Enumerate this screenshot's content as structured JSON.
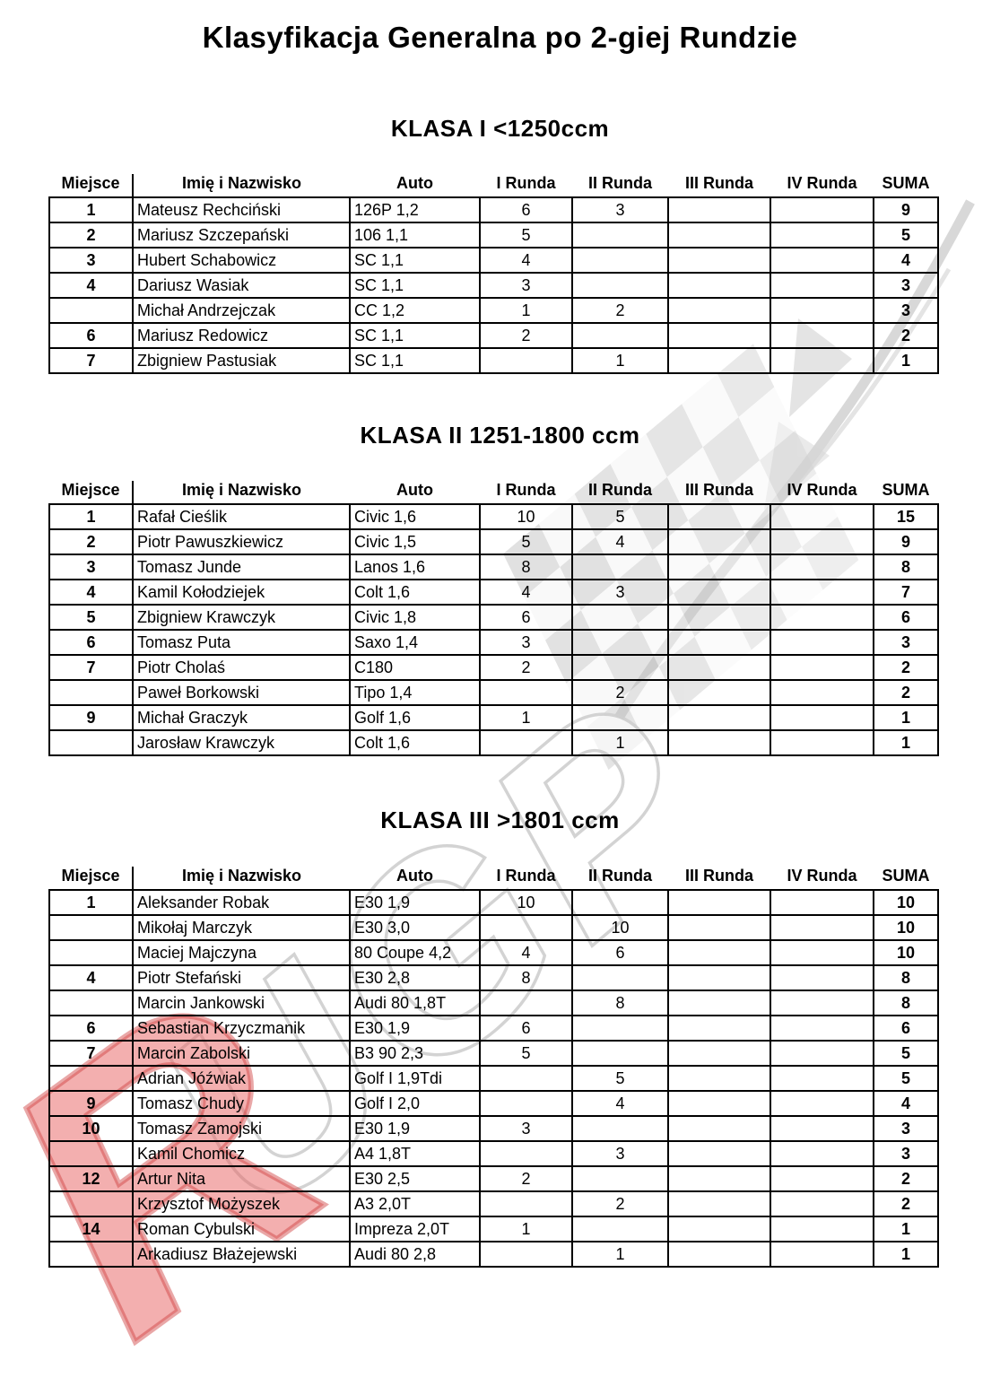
{
  "page": {
    "title": "Klasyfikacja Generalna po 2-giej Rundzie"
  },
  "watermark": {
    "icon": "checkered-flag-watermark",
    "letters": "UGP",
    "red_letter": "R",
    "gray_color": "#cfcfcf",
    "red_color": "#e05a5a"
  },
  "columns": [
    "Miejsce",
    "Imię i Nazwisko",
    "Auto",
    "I Runda",
    "II Runda",
    "III Runda",
    "IV Runda",
    "SUMA"
  ],
  "tables": [
    {
      "heading": "KLASA I <1250ccm",
      "rows": [
        [
          "1",
          "Mateusz Rechciński",
          "126P 1,2",
          "6",
          "3",
          "",
          "",
          "9"
        ],
        [
          "2",
          "Mariusz Szczepański",
          "106 1,1",
          "5",
          "",
          "",
          "",
          "5"
        ],
        [
          "3",
          "Hubert Schabowicz",
          "SC 1,1",
          "4",
          "",
          "",
          "",
          "4"
        ],
        [
          "4",
          "Dariusz Wasiak",
          "SC 1,1",
          "3",
          "",
          "",
          "",
          "3"
        ],
        [
          "",
          "Michał Andrzejczak",
          "CC 1,2",
          "1",
          "2",
          "",
          "",
          "3"
        ],
        [
          "6",
          "Mariusz Redowicz",
          "SC 1,1",
          "2",
          "",
          "",
          "",
          "2"
        ],
        [
          "7",
          "Zbigniew Pastusiak",
          "SC 1,1",
          "",
          "1",
          "",
          "",
          "1"
        ]
      ]
    },
    {
      "heading": "KLASA II 1251-1800 ccm",
      "rows": [
        [
          "1",
          "Rafał Cieślik",
          "Civic 1,6",
          "10",
          "5",
          "",
          "",
          "15"
        ],
        [
          "2",
          "Piotr Pawuszkiewicz",
          "Civic 1,5",
          "5",
          "4",
          "",
          "",
          "9"
        ],
        [
          "3",
          "Tomasz Junde",
          "Lanos 1,6",
          "8",
          "",
          "",
          "",
          "8"
        ],
        [
          "4",
          "Kamil Kołodziejek",
          "Colt 1,6",
          "4",
          "3",
          "",
          "",
          "7"
        ],
        [
          "5",
          "Zbigniew Krawczyk",
          "Civic 1,8",
          "6",
          "",
          "",
          "",
          "6"
        ],
        [
          "6",
          "Tomasz Puta",
          "Saxo 1,4",
          "3",
          "",
          "",
          "",
          "3"
        ],
        [
          "7",
          "Piotr Cholaś",
          "C180",
          "2",
          "",
          "",
          "",
          "2"
        ],
        [
          "",
          "Paweł Borkowski",
          "Tipo 1,4",
          "",
          "2",
          "",
          "",
          "2"
        ],
        [
          "9",
          "Michał Graczyk",
          "Golf 1,6",
          "1",
          "",
          "",
          "",
          "1"
        ],
        [
          "",
          "Jarosław Krawczyk",
          "Colt 1,6",
          "",
          "1",
          "",
          "",
          "1"
        ]
      ]
    },
    {
      "heading": "KLASA III >1801 ccm",
      "rows": [
        [
          "1",
          "Aleksander Robak",
          "E30 1,9",
          "10",
          "",
          "",
          "",
          "10"
        ],
        [
          "",
          "Mikołaj Marczyk",
          "E30 3,0",
          "",
          "10",
          "",
          "",
          "10"
        ],
        [
          "",
          "Maciej Majczyna",
          "80 Coupe 4,2",
          "4",
          "6",
          "",
          "",
          "10"
        ],
        [
          "4",
          "Piotr Stefański",
          "E30 2,8",
          "8",
          "",
          "",
          "",
          "8"
        ],
        [
          "",
          "Marcin Jankowski",
          "Audi 80 1,8T",
          "",
          "8",
          "",
          "",
          "8"
        ],
        [
          "6",
          "Sebastian Krzyczmanik",
          "E30 1,9",
          "6",
          "",
          "",
          "",
          "6"
        ],
        [
          "7",
          "Marcin Zabolski",
          "B3 90 2,3",
          "5",
          "",
          "",
          "",
          "5"
        ],
        [
          "",
          "Adrian Jóźwiak",
          "Golf I 1,9Tdi",
          "",
          "5",
          "",
          "",
          "5"
        ],
        [
          "9",
          "Tomasz Chudy",
          "Golf I 2,0",
          "",
          "4",
          "",
          "",
          "4"
        ],
        [
          "10",
          "Tomasz Zamojski",
          "E30 1,9",
          "3",
          "",
          "",
          "",
          "3"
        ],
        [
          "",
          "Kamil Chomicz",
          "A4 1,8T",
          "",
          "3",
          "",
          "",
          "3"
        ],
        [
          "12",
          "Artur Nita",
          "E30 2,5",
          "2",
          "",
          "",
          "",
          "2"
        ],
        [
          "",
          "Krzysztof Możyszek",
          "A3 2,0T",
          "",
          "2",
          "",
          "",
          "2"
        ],
        [
          "14",
          "Roman Cybulski",
          "Impreza 2,0T",
          "1",
          "",
          "",
          "",
          "1"
        ],
        [
          "",
          "Arkadiusz Błażejewski",
          "Audi 80 2,8",
          "",
          "1",
          "",
          "",
          "1"
        ]
      ]
    }
  ]
}
